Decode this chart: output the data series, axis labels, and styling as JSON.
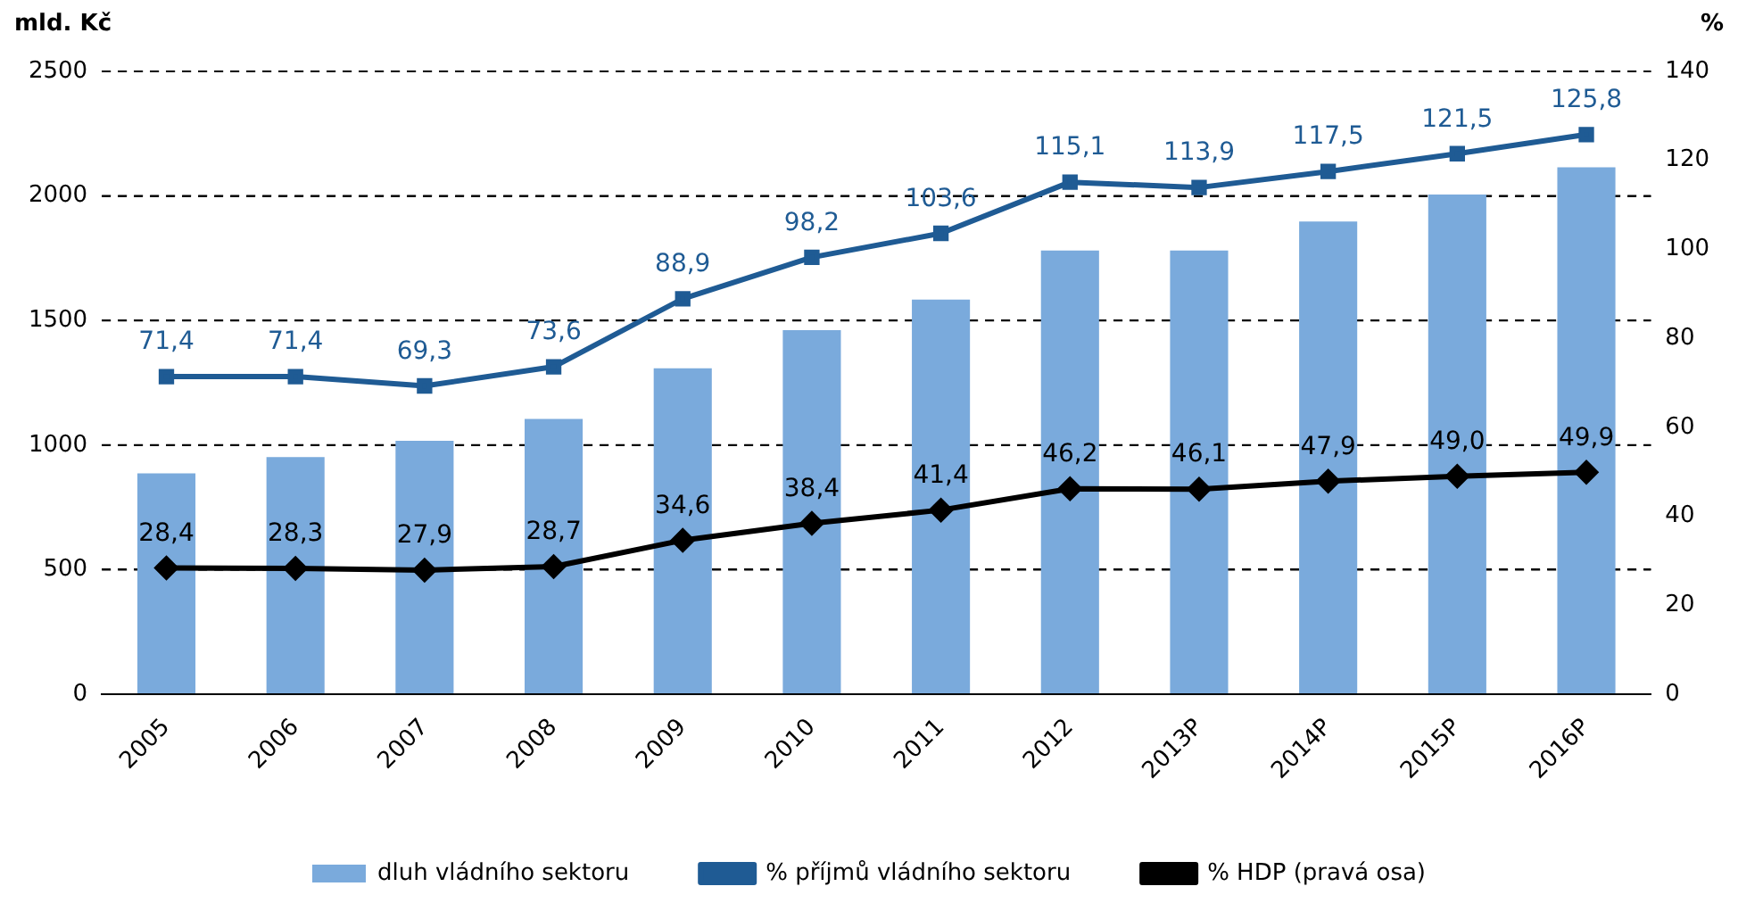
{
  "chart_data": {
    "type": "bar",
    "ylabel": "mld. Kč",
    "y2label": "%",
    "categories": [
      "2005",
      "2006",
      "2007",
      "2008",
      "2009",
      "2010",
      "2011",
      "2012",
      "2013P",
      "2014P",
      "2015P",
      "2016P"
    ],
    "series": [
      {
        "name": "dluh vládního sektoru",
        "color": "#7aaadc",
        "values": [
          887,
          952,
          1017,
          1105,
          1308,
          1461,
          1584,
          1781,
          1781,
          1897,
          2006,
          2115
        ]
      },
      {
        "name": "% příjmů vládního sektoru",
        "type": "line",
        "axis": "y2",
        "marker": "square",
        "color": "#1f5b94",
        "values": [
          71.4,
          71.4,
          69.3,
          73.6,
          88.9,
          98.2,
          103.6,
          115.1,
          113.9,
          117.5,
          121.5,
          125.8
        ],
        "value_labels": [
          "71,4",
          "71,4",
          "69,3",
          "73,6",
          "88,9",
          "98,2",
          "103,6",
          "115,1",
          "113,9",
          "117,5",
          "121,5",
          "125,8"
        ]
      },
      {
        "name": "% HDP (pravá osa)",
        "type": "line",
        "axis": "y2",
        "marker": "diamond",
        "color": "#000000",
        "values": [
          28.4,
          28.3,
          27.9,
          28.7,
          34.6,
          38.4,
          41.4,
          46.2,
          46.1,
          47.9,
          49.0,
          49.9
        ],
        "value_labels": [
          "28,4",
          "28,3",
          "27,9",
          "28,7",
          "34,6",
          "38,4",
          "41,4",
          "46,2",
          "46,1",
          "47,9",
          "49,0",
          "49,9"
        ]
      }
    ],
    "ylim": [
      0,
      2500
    ],
    "yticks": [
      0,
      500,
      1000,
      1500,
      2000,
      2500
    ],
    "y2lim": [
      0,
      140
    ],
    "y2ticks": [
      0,
      20,
      40,
      60,
      80,
      100,
      120,
      140
    ],
    "grid": "y",
    "legend": "bottom",
    "line_style": "solid"
  }
}
